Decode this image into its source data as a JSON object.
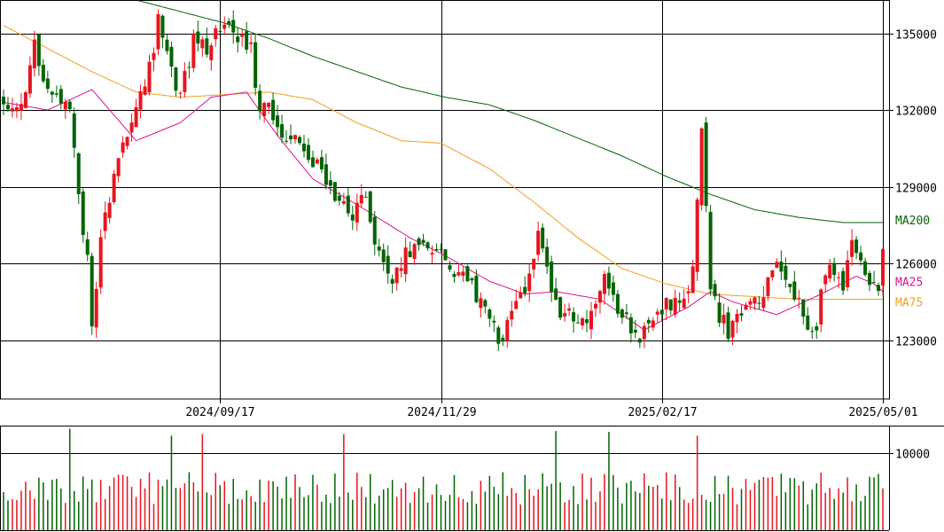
{
  "chart_data": {
    "type": "candlestick",
    "y_ticks": [
      "135000",
      "132000",
      "129000",
      "126000",
      "123000"
    ],
    "y_tick_values": [
      135000,
      132000,
      129000,
      126000,
      123000
    ],
    "ylim": [
      120700,
      136300
    ],
    "x_ticks": [
      "2024/09/17",
      "2024/11/29",
      "2025/02/17",
      "2025/05/01"
    ],
    "x_tick_index": [
      49,
      99,
      149,
      199
    ],
    "volume_ticks": [
      "10000"
    ],
    "volume_tick_values": [
      10000
    ],
    "volume_max": 13500,
    "colors": {
      "up": "#e8141e",
      "down": "#006400",
      "ma25": "#e0108e",
      "ma75": "#f0a020",
      "ma200": "#006400",
      "grid": "#000000"
    },
    "ma_labels": {
      "ma200": "MA200",
      "ma25": "MA25",
      "ma75": "MA75"
    },
    "ma_label_values": {
      "ma200": 127700,
      "ma25": 125300,
      "ma75": 124500
    },
    "ma25_shape": [
      [
        0,
        132300
      ],
      [
        10,
        132000
      ],
      [
        20,
        132800
      ],
      [
        30,
        130800
      ],
      [
        40,
        131500
      ],
      [
        47,
        132500
      ],
      [
        55,
        132700
      ],
      [
        62,
        131000
      ],
      [
        70,
        129300
      ],
      [
        80,
        128300
      ],
      [
        92,
        127000
      ],
      [
        100,
        126300
      ],
      [
        110,
        125300
      ],
      [
        118,
        124800
      ],
      [
        125,
        124900
      ],
      [
        135,
        124600
      ],
      [
        145,
        123400
      ],
      [
        155,
        124300
      ],
      [
        160,
        124900
      ],
      [
        165,
        124500
      ],
      [
        175,
        124000
      ],
      [
        185,
        124800
      ],
      [
        193,
        125500
      ],
      [
        197,
        125200
      ],
      [
        199,
        124900
      ]
    ],
    "ma75_shape": [
      [
        0,
        135300
      ],
      [
        10,
        134400
      ],
      [
        20,
        133500
      ],
      [
        30,
        132700
      ],
      [
        40,
        132500
      ],
      [
        50,
        132600
      ],
      [
        60,
        132700
      ],
      [
        70,
        132400
      ],
      [
        80,
        131500
      ],
      [
        90,
        130800
      ],
      [
        99,
        130700
      ],
      [
        110,
        129700
      ],
      [
        120,
        128400
      ],
      [
        130,
        127000
      ],
      [
        140,
        125800
      ],
      [
        150,
        125200
      ],
      [
        160,
        124800
      ],
      [
        170,
        124700
      ],
      [
        180,
        124600
      ],
      [
        190,
        124600
      ],
      [
        199,
        124600
      ]
    ],
    "ma200_shape": [
      [
        30,
        136300
      ],
      [
        50,
        135400
      ],
      [
        60,
        134800
      ],
      [
        70,
        134100
      ],
      [
        80,
        133500
      ],
      [
        90,
        132900
      ],
      [
        100,
        132500
      ],
      [
        110,
        132200
      ],
      [
        120,
        131600
      ],
      [
        130,
        130900
      ],
      [
        140,
        130200
      ],
      [
        150,
        129400
      ],
      [
        160,
        128700
      ],
      [
        170,
        128100
      ],
      [
        180,
        127800
      ],
      [
        190,
        127600
      ],
      [
        199,
        127600
      ]
    ],
    "price_path": [
      [
        0,
        132400
      ],
      [
        4,
        132200
      ],
      [
        7,
        134600
      ],
      [
        10,
        132500
      ],
      [
        13,
        132300
      ],
      [
        15,
        131800
      ],
      [
        17,
        128600
      ],
      [
        19,
        126000
      ],
      [
        20,
        123400
      ],
      [
        22,
        126900
      ],
      [
        25,
        129300
      ],
      [
        28,
        131100
      ],
      [
        32,
        132900
      ],
      [
        35,
        135400
      ],
      [
        38,
        133700
      ],
      [
        40,
        132500
      ],
      [
        43,
        134700
      ],
      [
        46,
        134400
      ],
      [
        48,
        135200
      ],
      [
        52,
        135100
      ],
      [
        56,
        134500
      ],
      [
        58,
        131700
      ],
      [
        60,
        132400
      ],
      [
        62,
        131000
      ],
      [
        66,
        130700
      ],
      [
        70,
        130000
      ],
      [
        73,
        129300
      ],
      [
        76,
        128500
      ],
      [
        79,
        127800
      ],
      [
        82,
        128800
      ],
      [
        84,
        126500
      ],
      [
        86,
        126000
      ],
      [
        88,
        125400
      ],
      [
        91,
        126400
      ],
      [
        94,
        126800
      ],
      [
        98,
        126400
      ],
      [
        102,
        125800
      ],
      [
        106,
        125100
      ],
      [
        109,
        124100
      ],
      [
        112,
        123200
      ],
      [
        114,
        123500
      ],
      [
        117,
        124600
      ],
      [
        119,
        125400
      ],
      [
        121,
        127000
      ],
      [
        123,
        125800
      ],
      [
        126,
        124100
      ],
      [
        129,
        123800
      ],
      [
        132,
        123800
      ],
      [
        134,
        124200
      ],
      [
        136,
        125600
      ],
      [
        138,
        124500
      ],
      [
        141,
        123800
      ],
      [
        144,
        123200
      ],
      [
        147,
        123600
      ],
      [
        150,
        124400
      ],
      [
        153,
        124500
      ],
      [
        156,
        125600
      ],
      [
        158,
        131200
      ],
      [
        160,
        125300
      ],
      [
        162,
        123900
      ],
      [
        164,
        123400
      ],
      [
        166,
        123800
      ],
      [
        169,
        124300
      ],
      [
        172,
        124800
      ],
      [
        175,
        125900
      ],
      [
        178,
        124900
      ],
      [
        180,
        124400
      ],
      [
        182,
        123200
      ],
      [
        184,
        123700
      ],
      [
        186,
        125600
      ],
      [
        188,
        125800
      ],
      [
        190,
        125200
      ],
      [
        192,
        126700
      ],
      [
        194,
        126300
      ],
      [
        196,
        125000
      ],
      [
        198,
        125000
      ],
      [
        199,
        126400
      ]
    ],
    "volume_spikes": {
      "15": 13100,
      "38": 12200,
      "45": 12400,
      "77": 12400,
      "125": 12800,
      "137": 12700,
      "157": 12200
    }
  }
}
